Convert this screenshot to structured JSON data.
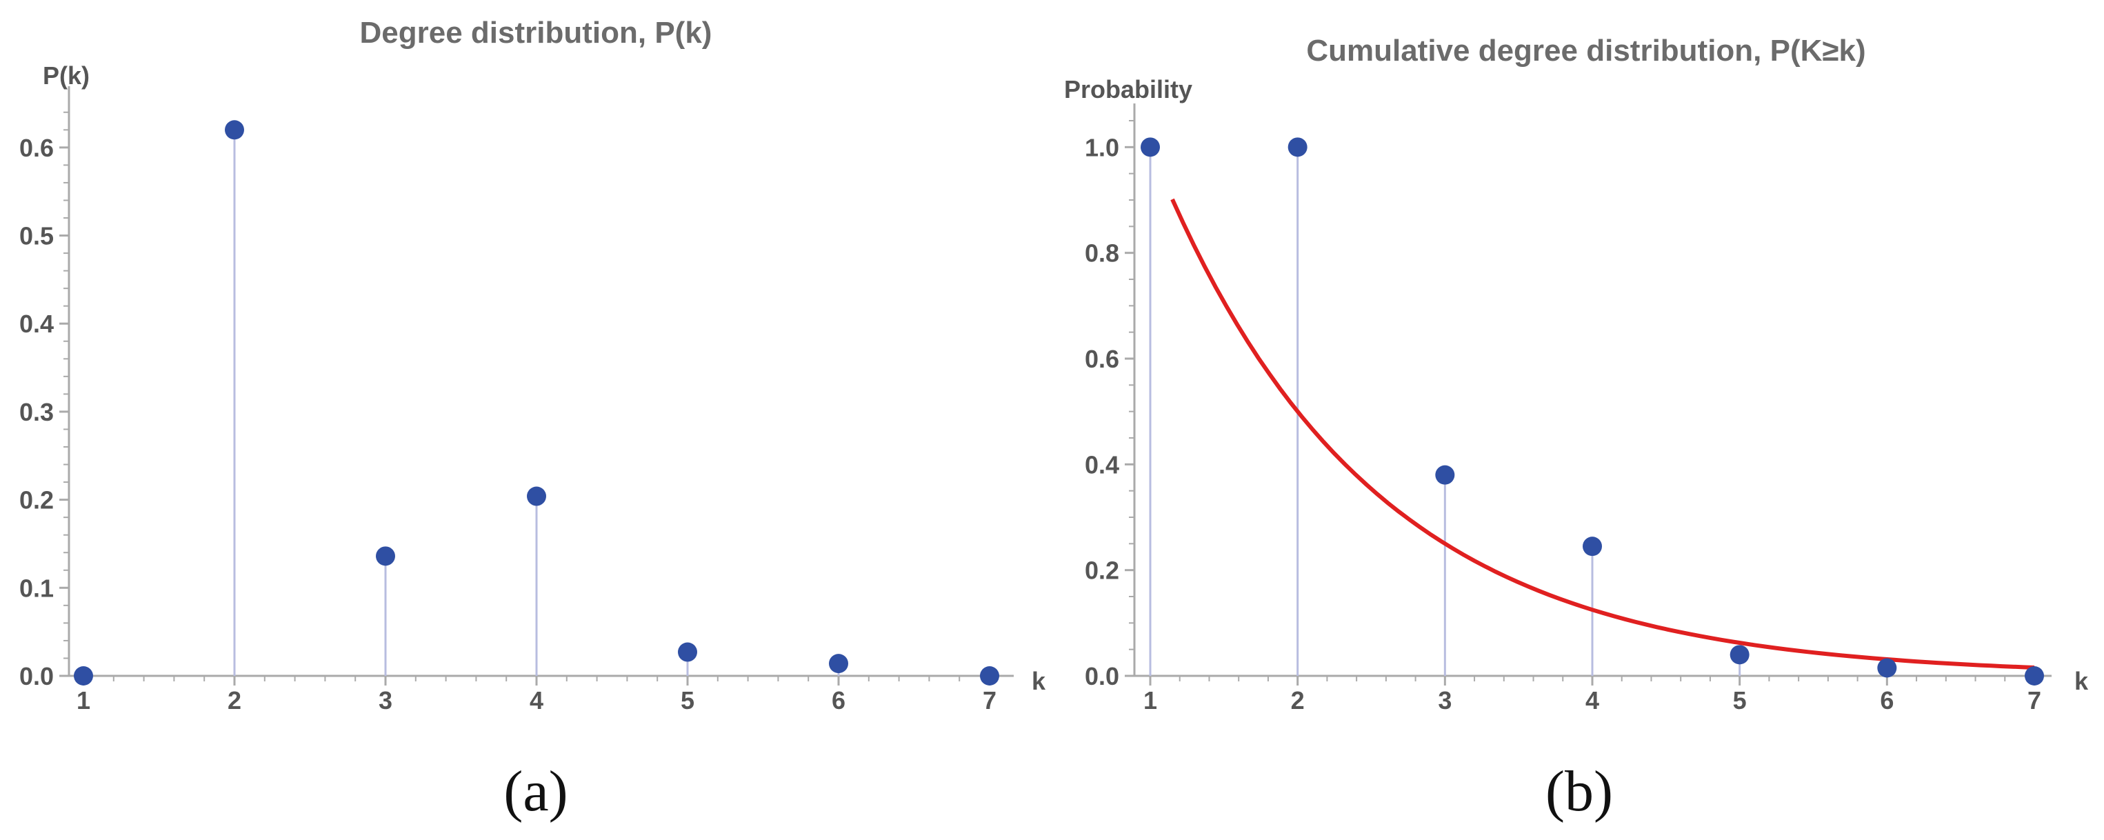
{
  "chart_data": [
    {
      "type": "scatter",
      "style": "stem",
      "title": "Degree distribution, P(k)",
      "xlabel": "k",
      "ylabel": "P(k)",
      "xlim": [
        1,
        7
      ],
      "ylim": [
        0,
        0.65
      ],
      "xticks": [
        "1",
        "2",
        "3",
        "4",
        "5",
        "6",
        "7"
      ],
      "yticks": [
        "0.0",
        "0.1",
        "0.2",
        "0.3",
        "0.4",
        "0.5",
        "0.6"
      ],
      "x": [
        1,
        2,
        3,
        4,
        5,
        6,
        7
      ],
      "y": [
        0.0,
        0.62,
        0.136,
        0.204,
        0.027,
        0.014,
        0.0
      ],
      "caption": "(a)"
    },
    {
      "type": "scatter",
      "style": "stem",
      "title": "Cumulative degree distribution, P(K≥k)",
      "xlabel": "k",
      "ylabel": "Probability",
      "xlim": [
        1,
        7
      ],
      "ylim": [
        0,
        1.05
      ],
      "xticks": [
        "1",
        "2",
        "3",
        "4",
        "5",
        "6",
        "7"
      ],
      "yticks": [
        "0.0",
        "0.2",
        "0.4",
        "0.6",
        "0.8",
        "1.0"
      ],
      "x": [
        1,
        2,
        3,
        4,
        5,
        6,
        7
      ],
      "y": [
        1.0,
        1.0,
        0.38,
        0.245,
        0.04,
        0.015,
        0.0
      ],
      "fit": {
        "type": "exponential",
        "a": 2.0,
        "b": 0.5,
        "x_start": 1.15,
        "x_end": 7,
        "color": "#e02020"
      },
      "caption": "(b)"
    }
  ]
}
